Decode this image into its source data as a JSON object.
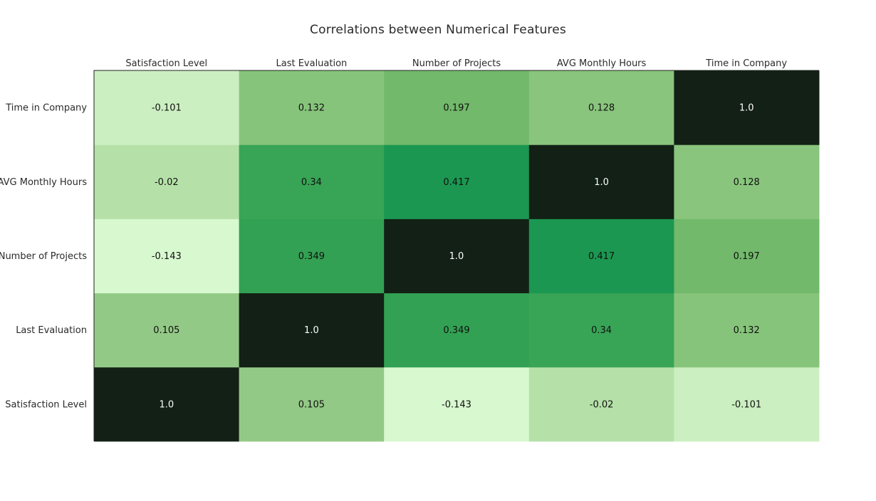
{
  "chart_data": {
    "type": "heatmap",
    "title": "Correlations between Numerical Features",
    "x_categories": [
      "Satisfaction Level",
      "Last Evaluation",
      "Number of Projects",
      "AVG Monthly Hours",
      "Time in Company"
    ],
    "y_categories": [
      "Satisfaction Level",
      "Last Evaluation",
      "Number of Projects",
      "AVG Monthly Hours",
      "Time in Company"
    ],
    "x_axis_position": "top",
    "y_axis_order": "bottom-to-top",
    "values": [
      [
        1.0,
        0.105,
        -0.143,
        -0.02,
        -0.101
      ],
      [
        0.105,
        1.0,
        0.349,
        0.34,
        0.132
      ],
      [
        -0.143,
        0.349,
        1.0,
        0.417,
        0.197
      ],
      [
        -0.02,
        0.34,
        0.417,
        1.0,
        0.128
      ],
      [
        -0.101,
        0.132,
        0.197,
        0.128,
        1.0
      ]
    ],
    "cell_labels": [
      [
        "1.0",
        "0.105",
        "-0.143",
        "-0.02",
        "-0.101"
      ],
      [
        "0.105",
        "1.0",
        "0.349",
        "0.34",
        "0.132"
      ],
      [
        "-0.143",
        "0.349",
        "1.0",
        "0.417",
        "0.197"
      ],
      [
        "-0.02",
        "0.34",
        "0.417",
        "1.0",
        "0.128"
      ],
      [
        "-0.101",
        "0.132",
        "0.197",
        "0.128",
        "1.0"
      ]
    ],
    "colorscale": "Greens",
    "colors": {
      "1.0": "#122015",
      "0.417": "#1b9751",
      "0.349": "#33a153",
      "0.34": "#38a456",
      "0.197": "#72b96b",
      "0.132": "#87c47b",
      "0.128": "#89c57d",
      "0.105": "#93c986",
      "-0.02": "#b5e1a8",
      "-0.101": "#ccefc1",
      "-0.143": "#d8f8cf"
    },
    "label_colors": {
      "dark": "#111111",
      "light": "#ffffff"
    },
    "grid": false,
    "legend": "none"
  }
}
